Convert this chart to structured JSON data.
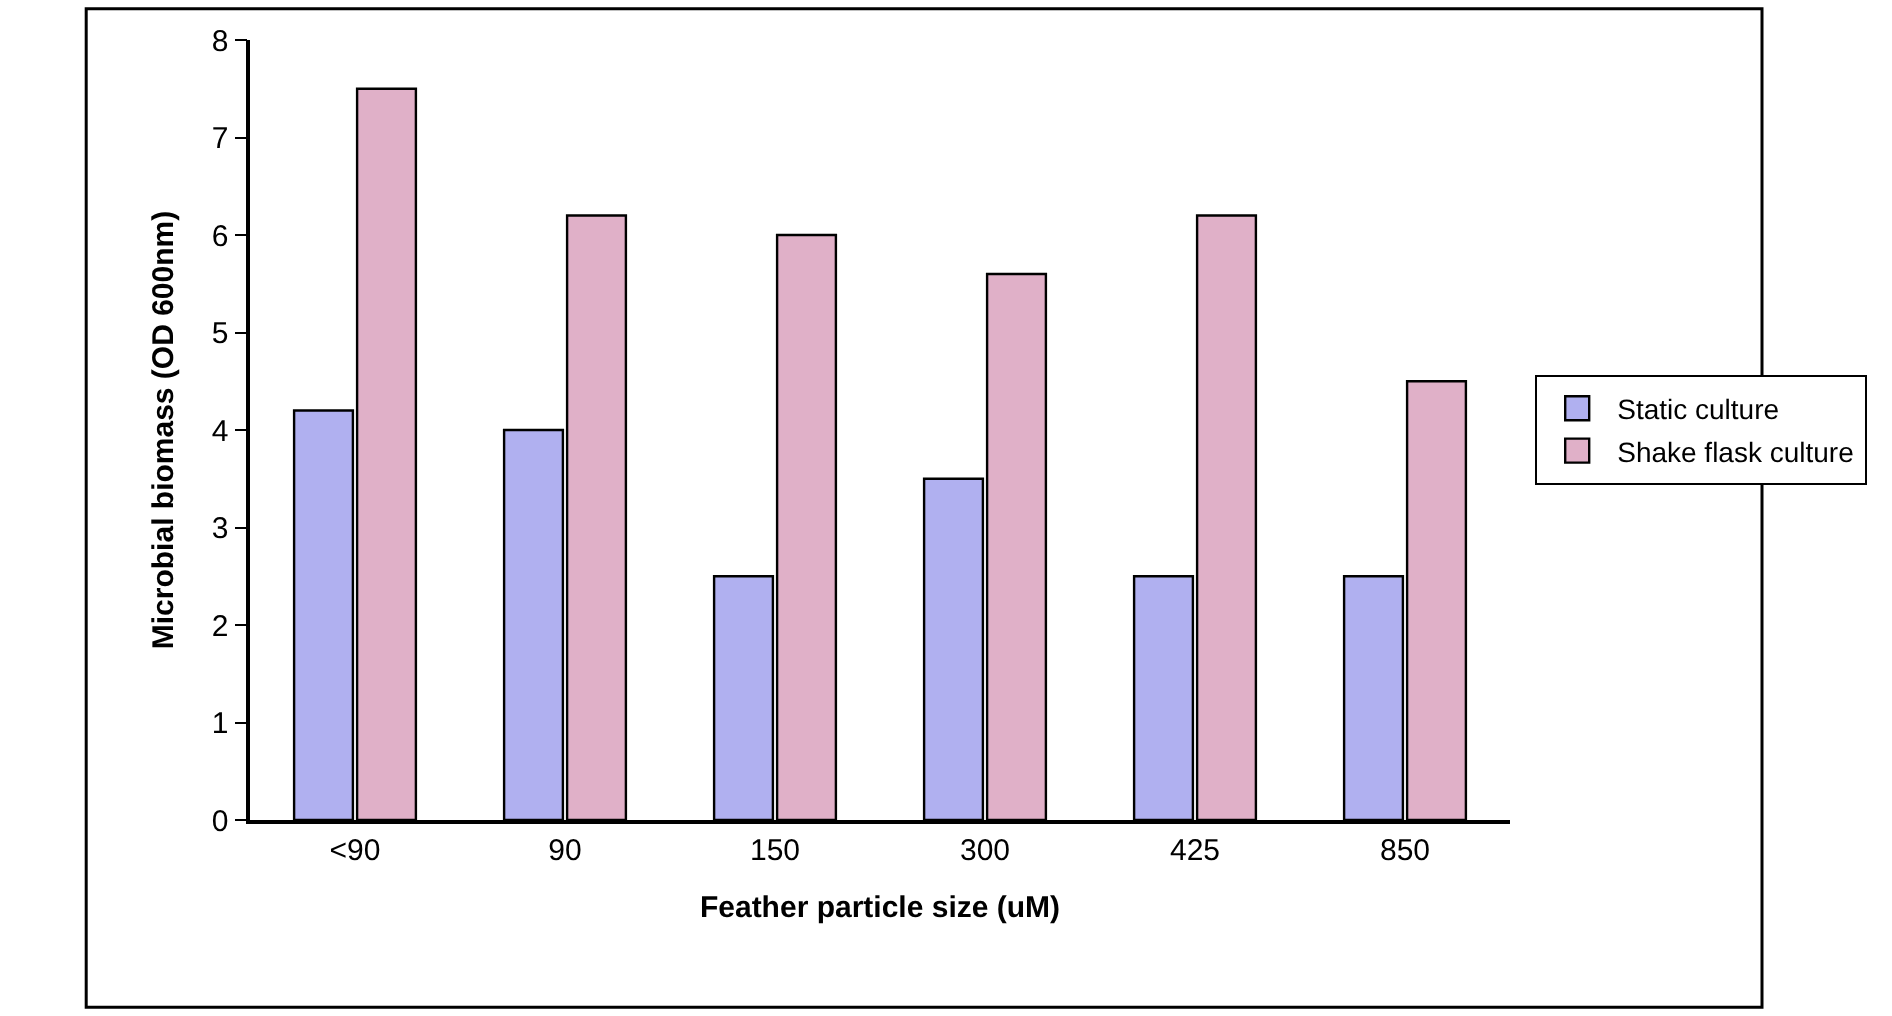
{
  "chart_data": {
    "type": "bar",
    "xlabel": "Feather particle size (uM)",
    "ylabel": "Microbial biomass (OD 600nm)",
    "categories": [
      "<90",
      "90",
      "150",
      "300",
      "425",
      "850"
    ],
    "series": [
      {
        "name": "Static culture",
        "color": "#b0b0f0",
        "values": [
          4.2,
          4.0,
          2.5,
          3.5,
          2.5,
          2.5
        ]
      },
      {
        "name": "Shake flask culture",
        "color": "#e0b0c8",
        "values": [
          7.5,
          6.2,
          6.0,
          5.6,
          6.2,
          4.5
        ]
      }
    ],
    "ylim": [
      0,
      8
    ],
    "yticks": [
      0,
      1,
      2,
      3,
      4,
      5,
      6,
      7,
      8
    ],
    "legend": "right"
  }
}
